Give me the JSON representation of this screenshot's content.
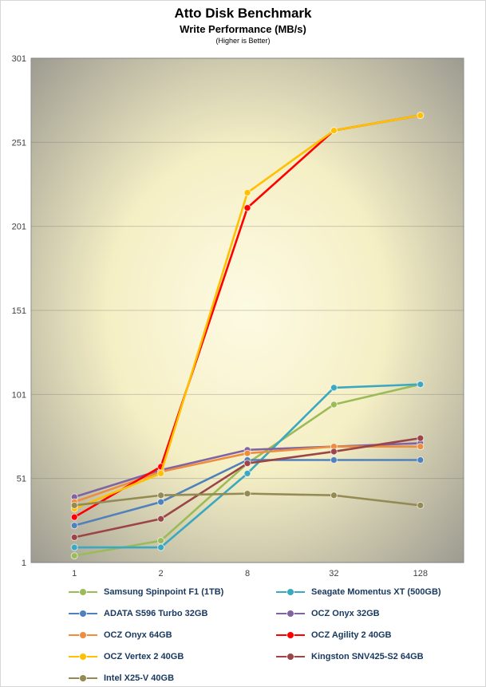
{
  "chart_data": {
    "type": "line",
    "title": "Atto Disk Benchmark",
    "subtitle": "Write Performance (MB/s)",
    "note": "(Higher is Better)",
    "categories": [
      "1",
      "2",
      "8",
      "32",
      "128"
    ],
    "ylim": [
      1,
      301
    ],
    "yticks": [
      1,
      51,
      101,
      151,
      201,
      251,
      301
    ],
    "grid": true,
    "legend_position": "bottom",
    "plot_gradient": {
      "center": "#FDFAE3",
      "mid": "#F5EFC5",
      "edge": "#9A988F"
    },
    "axis_color": "#404040",
    "series": [
      {
        "name": "Samsung Spinpoint F1 (1TB)",
        "color": "#9BBB59",
        "values": [
          5,
          14,
          60,
          95,
          107
        ]
      },
      {
        "name": "Seagate Momentus XT (500GB)",
        "color": "#3BA8C2",
        "values": [
          10,
          10,
          54,
          105,
          107
        ]
      },
      {
        "name": "ADATA S596 Turbo 32GB",
        "color": "#4F81BD",
        "values": [
          23,
          37,
          62,
          62,
          62
        ]
      },
      {
        "name": "OCZ Onyx 32GB",
        "color": "#8064A2",
        "values": [
          40,
          56,
          68,
          70,
          72
        ]
      },
      {
        "name": "OCZ Onyx 64GB",
        "color": "#ED8E3F",
        "values": [
          37,
          55,
          66,
          70,
          70
        ]
      },
      {
        "name": "OCZ Agility 2 40GB",
        "color": "#FF0000",
        "values": [
          28,
          58,
          212,
          258,
          267
        ]
      },
      {
        "name": "OCZ Vertex 2 40GB",
        "color": "#FFC000",
        "values": [
          33,
          54,
          221,
          258,
          267
        ]
      },
      {
        "name": "Kingston SNV425-S2 64GB",
        "color": "#9C4548",
        "values": [
          16,
          27,
          60,
          67,
          75
        ]
      },
      {
        "name": "Intel X25-V 40GB",
        "color": "#948A54",
        "values": [
          35,
          41,
          42,
          41,
          35
        ]
      }
    ]
  }
}
